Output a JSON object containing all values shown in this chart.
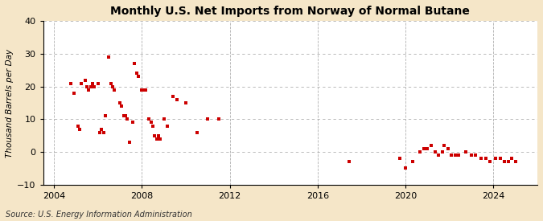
{
  "title": "Monthly U.S. Net Imports from Norway of Normal Butane",
  "ylabel": "Thousand Barrels per Day",
  "source": "Source: U.S. Energy Information Administration",
  "figure_bg": "#f5e6c8",
  "plot_bg": "#ffffff",
  "dot_color": "#cc0000",
  "xlim": [
    2003.5,
    2026
  ],
  "ylim": [
    -10,
    40
  ],
  "yticks": [
    -10,
    0,
    10,
    20,
    30,
    40
  ],
  "xticks": [
    2004,
    2008,
    2012,
    2016,
    2020,
    2024
  ],
  "data_x": [
    2004.75,
    2004.92,
    2005.08,
    2005.17,
    2005.25,
    2005.42,
    2005.5,
    2005.58,
    2005.67,
    2005.75,
    2005.83,
    2006.0,
    2006.08,
    2006.17,
    2006.25,
    2006.33,
    2006.5,
    2006.58,
    2006.67,
    2006.75,
    2007.0,
    2007.08,
    2007.17,
    2007.25,
    2007.33,
    2007.42,
    2007.58,
    2007.67,
    2007.75,
    2007.83,
    2008.0,
    2008.08,
    2008.17,
    2008.33,
    2008.42,
    2008.5,
    2008.58,
    2008.67,
    2008.75,
    2008.83,
    2009.0,
    2009.17,
    2009.42,
    2009.58,
    2010.0,
    2010.5,
    2011.0,
    2011.5,
    2017.42,
    2019.75,
    2020.0,
    2020.33,
    2020.67,
    2020.83,
    2021.0,
    2021.17,
    2021.33,
    2021.5,
    2021.67,
    2021.75,
    2021.92,
    2022.08,
    2022.25,
    2022.42,
    2022.75,
    2023.0,
    2023.17,
    2023.42,
    2023.67,
    2023.83,
    2024.08,
    2024.33,
    2024.5,
    2024.67,
    2024.83,
    2025.0
  ],
  "data_y": [
    21,
    18,
    8,
    7,
    21,
    22,
    20,
    19,
    20,
    21,
    20,
    21,
    6,
    7,
    6,
    11,
    29,
    21,
    20,
    19,
    15,
    14,
    11,
    11,
    10,
    3,
    9,
    27,
    24,
    23,
    19,
    19,
    19,
    10,
    9,
    8,
    5,
    4,
    5,
    4,
    10,
    8,
    17,
    16,
    15,
    6,
    10,
    10,
    -3,
    -2,
    -5,
    -3,
    0,
    1,
    1,
    2,
    0,
    -1,
    0,
    2,
    1,
    -1,
    -1,
    -1,
    0,
    -1,
    -1,
    -2,
    -2,
    -3,
    -2,
    -2,
    -3,
    -3,
    -2,
    -3
  ]
}
